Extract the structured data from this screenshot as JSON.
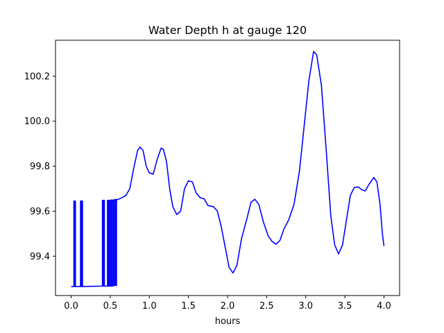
{
  "chart_data": {
    "type": "line",
    "title": "Water Depth h at gauge 120",
    "xlabel": "hours",
    "ylabel": "",
    "xlim": [
      -0.2,
      4.2
    ],
    "ylim": [
      99.225,
      100.36
    ],
    "xticks": [
      {
        "value": 0.0,
        "label": "0.0"
      },
      {
        "value": 0.5,
        "label": "0.5"
      },
      {
        "value": 1.0,
        "label": "1.0"
      },
      {
        "value": 1.5,
        "label": "1.5"
      },
      {
        "value": 2.0,
        "label": "2.0"
      },
      {
        "value": 2.5,
        "label": "2.5"
      },
      {
        "value": 3.0,
        "label": "3.0"
      },
      {
        "value": 3.5,
        "label": "3.5"
      },
      {
        "value": 4.0,
        "label": "4.0"
      }
    ],
    "yticks": [
      {
        "value": 99.4,
        "label": "99.4"
      },
      {
        "value": 99.6,
        "label": "99.6"
      },
      {
        "value": 99.8,
        "label": "99.8"
      },
      {
        "value": 100.0,
        "label": "100.0"
      },
      {
        "value": 100.2,
        "label": "100.2"
      }
    ],
    "grid": false,
    "series": [
      {
        "color": "#0000ff",
        "points": [
          [
            0.0,
            99.265
          ],
          [
            0.035,
            99.265
          ],
          [
            0.035,
            99.645
          ],
          [
            0.045,
            99.645
          ],
          [
            0.045,
            99.265
          ],
          [
            0.048,
            99.265
          ],
          [
            0.048,
            99.645
          ],
          [
            0.055,
            99.645
          ],
          [
            0.055,
            99.265
          ],
          [
            0.12,
            99.265
          ],
          [
            0.12,
            99.645
          ],
          [
            0.13,
            99.645
          ],
          [
            0.13,
            99.265
          ],
          [
            0.135,
            99.265
          ],
          [
            0.135,
            99.645
          ],
          [
            0.145,
            99.645
          ],
          [
            0.145,
            99.265
          ],
          [
            0.4,
            99.267
          ],
          [
            0.4,
            99.648
          ],
          [
            0.41,
            99.648
          ],
          [
            0.41,
            99.267
          ],
          [
            0.415,
            99.267
          ],
          [
            0.415,
            99.648
          ],
          [
            0.425,
            99.648
          ],
          [
            0.425,
            99.267
          ],
          [
            0.465,
            99.267
          ],
          [
            0.465,
            99.648
          ],
          [
            0.475,
            99.648
          ],
          [
            0.475,
            99.267
          ],
          [
            0.485,
            99.267
          ],
          [
            0.485,
            99.648
          ],
          [
            0.495,
            99.648
          ],
          [
            0.495,
            99.267
          ],
          [
            0.51,
            99.267
          ],
          [
            0.51,
            99.65
          ],
          [
            0.52,
            99.65
          ],
          [
            0.52,
            99.267
          ],
          [
            0.535,
            99.267
          ],
          [
            0.535,
            99.65
          ],
          [
            0.545,
            99.65
          ],
          [
            0.545,
            99.27
          ],
          [
            0.56,
            99.27
          ],
          [
            0.56,
            99.652
          ],
          [
            0.57,
            99.652
          ],
          [
            0.57,
            99.27
          ],
          [
            0.58,
            99.27
          ],
          [
            0.58,
            99.652
          ],
          [
            0.6,
            99.652
          ],
          [
            0.65,
            99.66
          ],
          [
            0.7,
            99.67
          ],
          [
            0.75,
            99.7
          ],
          [
            0.8,
            99.79
          ],
          [
            0.85,
            99.87
          ],
          [
            0.88,
            99.885
          ],
          [
            0.92,
            99.87
          ],
          [
            0.96,
            99.8
          ],
          [
            1.0,
            99.77
          ],
          [
            1.05,
            99.765
          ],
          [
            1.1,
            99.83
          ],
          [
            1.15,
            99.88
          ],
          [
            1.18,
            99.875
          ],
          [
            1.22,
            99.82
          ],
          [
            1.26,
            99.7
          ],
          [
            1.3,
            99.62
          ],
          [
            1.35,
            99.585
          ],
          [
            1.4,
            99.6
          ],
          [
            1.45,
            99.7
          ],
          [
            1.5,
            99.735
          ],
          [
            1.55,
            99.73
          ],
          [
            1.6,
            99.68
          ],
          [
            1.65,
            99.66
          ],
          [
            1.7,
            99.655
          ],
          [
            1.75,
            99.625
          ],
          [
            1.82,
            99.62
          ],
          [
            1.87,
            99.6
          ],
          [
            1.92,
            99.53
          ],
          [
            1.97,
            99.44
          ],
          [
            2.02,
            99.35
          ],
          [
            2.07,
            99.325
          ],
          [
            2.12,
            99.36
          ],
          [
            2.18,
            99.48
          ],
          [
            2.25,
            99.57
          ],
          [
            2.3,
            99.64
          ],
          [
            2.35,
            99.653
          ],
          [
            2.4,
            99.63
          ],
          [
            2.46,
            99.55
          ],
          [
            2.52,
            99.49
          ],
          [
            2.57,
            99.465
          ],
          [
            2.62,
            99.453
          ],
          [
            2.67,
            99.47
          ],
          [
            2.72,
            99.52
          ],
          [
            2.78,
            99.56
          ],
          [
            2.85,
            99.63
          ],
          [
            2.92,
            99.78
          ],
          [
            2.98,
            99.98
          ],
          [
            3.04,
            100.18
          ],
          [
            3.1,
            100.31
          ],
          [
            3.14,
            100.295
          ],
          [
            3.2,
            100.16
          ],
          [
            3.26,
            99.88
          ],
          [
            3.32,
            99.58
          ],
          [
            3.37,
            99.45
          ],
          [
            3.42,
            99.41
          ],
          [
            3.47,
            99.45
          ],
          [
            3.52,
            99.56
          ],
          [
            3.57,
            99.67
          ],
          [
            3.62,
            99.705
          ],
          [
            3.67,
            99.708
          ],
          [
            3.72,
            99.695
          ],
          [
            3.76,
            99.69
          ],
          [
            3.81,
            99.72
          ],
          [
            3.87,
            99.75
          ],
          [
            3.91,
            99.73
          ],
          [
            3.95,
            99.63
          ],
          [
            3.98,
            99.5
          ],
          [
            4.0,
            99.445
          ]
        ]
      }
    ]
  }
}
